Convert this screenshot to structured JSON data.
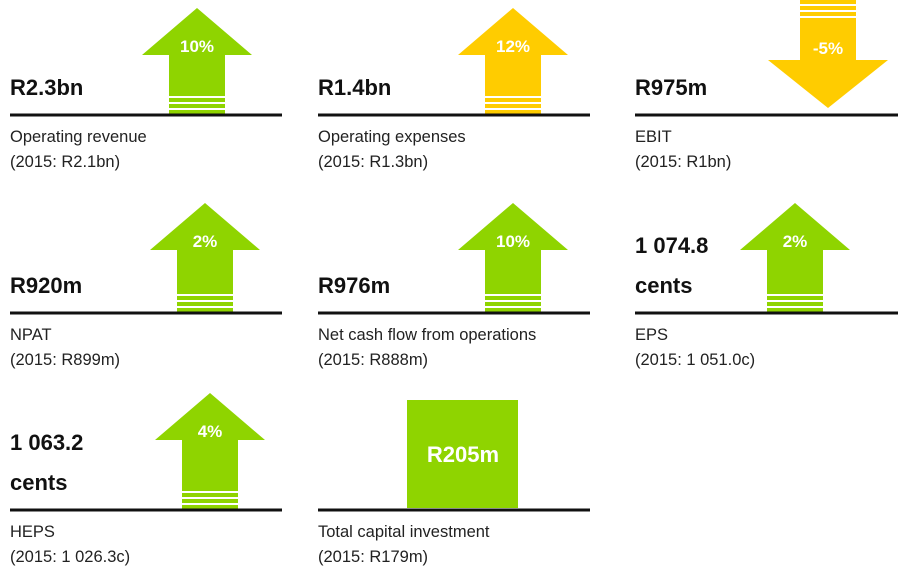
{
  "items": [
    {
      "value": [
        "R2.3bn"
      ],
      "label": "Operating revenue",
      "comparison": "(2015: R2.1bn)",
      "change": "10%",
      "direction": "up",
      "color": "#8fd400"
    },
    {
      "value": [
        "R1.4bn"
      ],
      "label": "Operating expenses",
      "comparison": "(2015: R1.3bn)",
      "change": "12%",
      "direction": "up",
      "color": "#ffcc00"
    },
    {
      "value": [
        "R975m"
      ],
      "label": "EBIT",
      "comparison": "(2015: R1bn)",
      "change": "-5%",
      "direction": "down",
      "color": "#ffcc00"
    },
    {
      "value": [
        "R920m"
      ],
      "label": "NPAT",
      "comparison": "(2015: R899m)",
      "change": "2%",
      "direction": "up",
      "color": "#8fd400"
    },
    {
      "value": [
        "R976m"
      ],
      "label": "Net cash flow from operations",
      "comparison": "(2015: R888m)",
      "change": "10%",
      "direction": "up",
      "color": "#8fd400"
    },
    {
      "value": [
        "1 074.8",
        "cents"
      ],
      "label": "EPS",
      "comparison": "(2015: 1 051.0c)",
      "change": "2%",
      "direction": "up",
      "color": "#8fd400"
    },
    {
      "value": [
        "1 063.2",
        "cents"
      ],
      "label": "HEPS",
      "comparison": "(2015: 1 026.3c)",
      "change": "4%",
      "direction": "up",
      "color": "#8fd400"
    },
    {
      "value": [
        "R205m"
      ],
      "label": "Total capital investment",
      "comparison": "(2015: R179m)",
      "direction": "box",
      "color": "#8fd400"
    }
  ]
}
